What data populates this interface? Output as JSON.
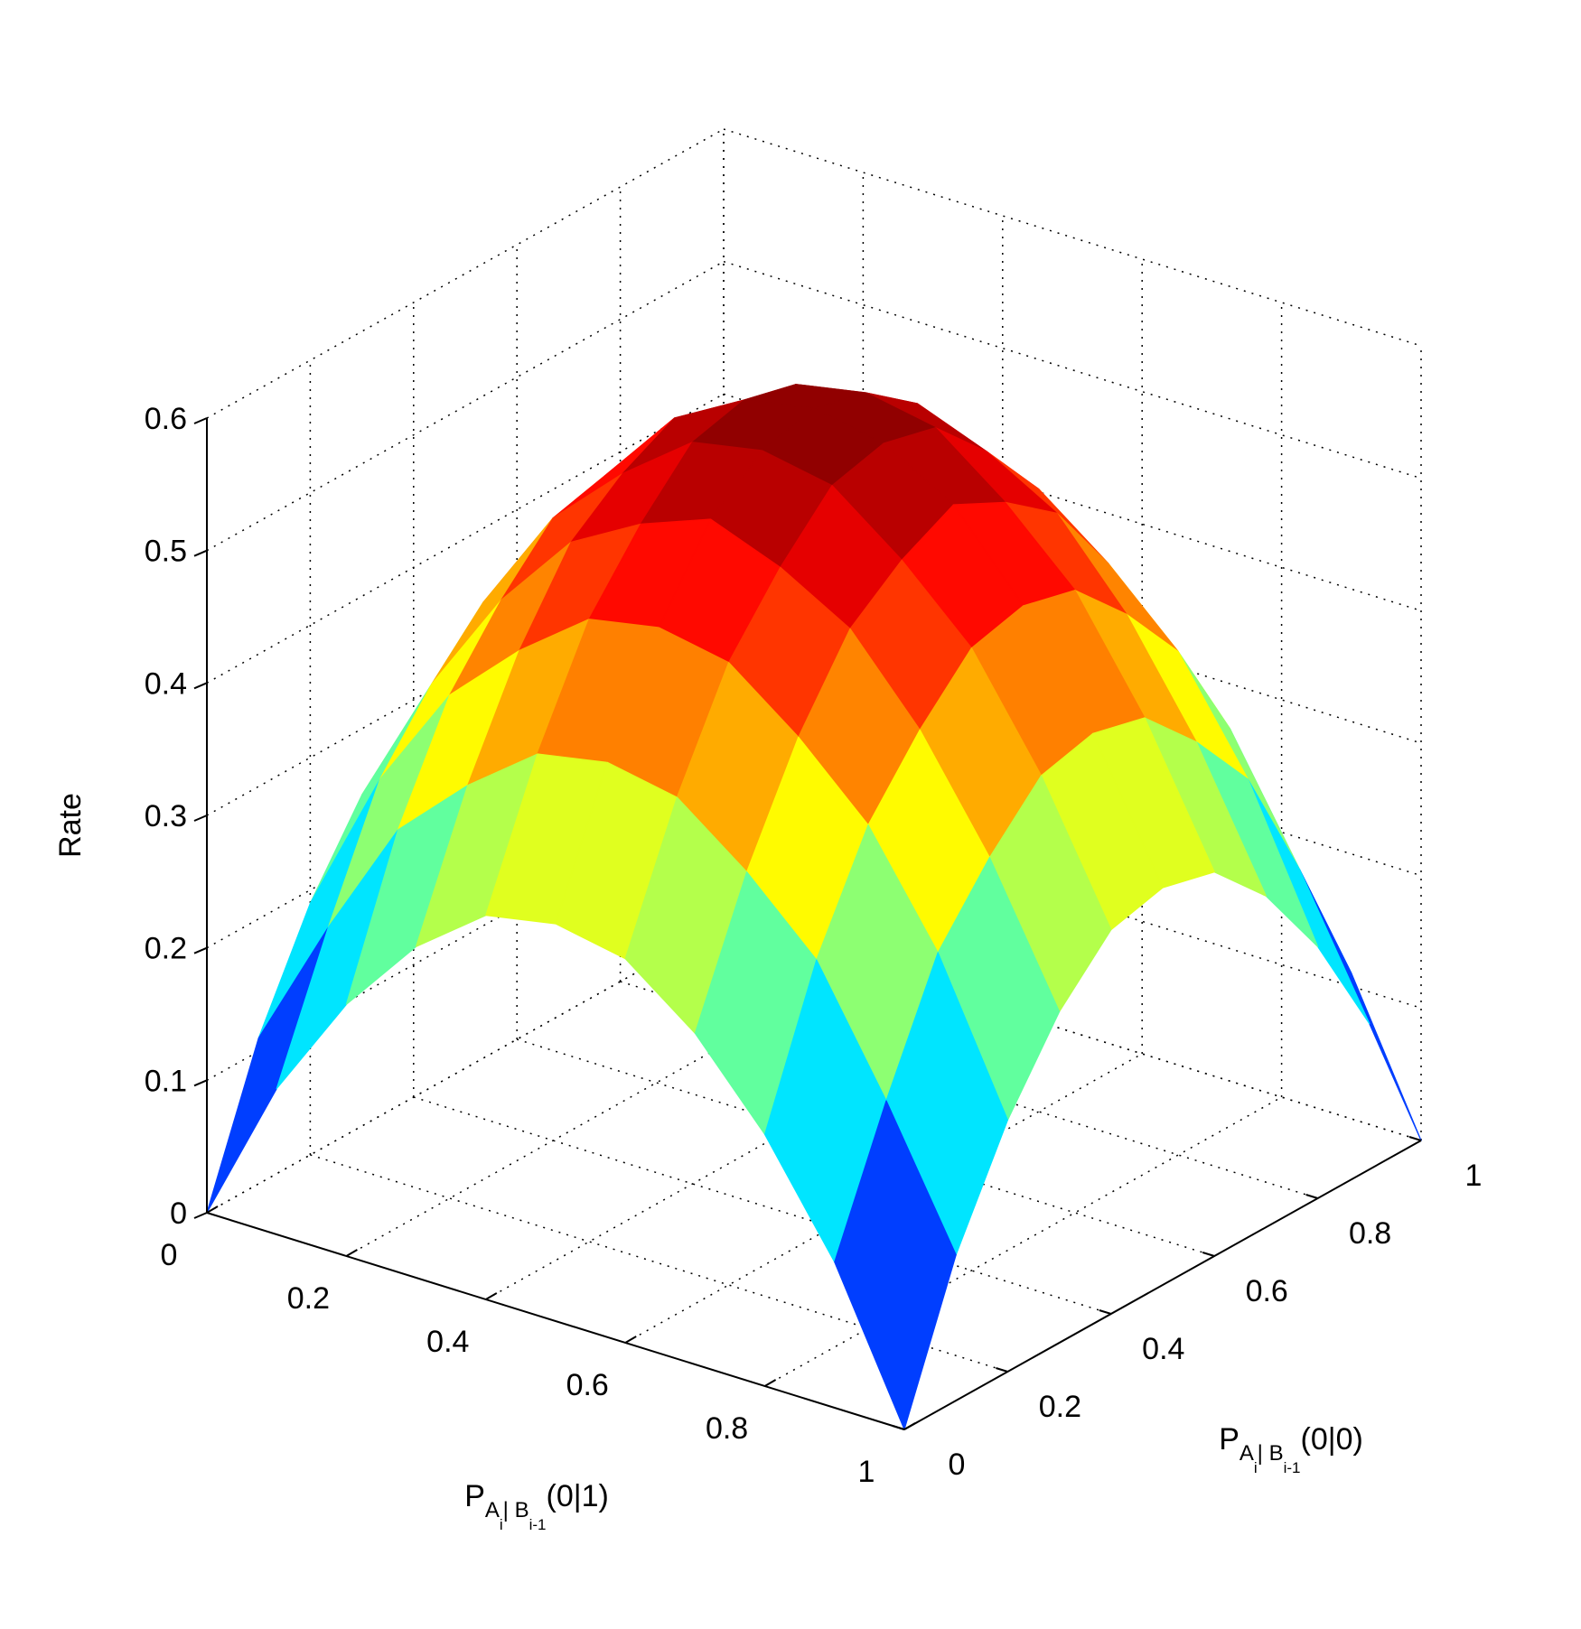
{
  "chart_data": {
    "type": "surface",
    "zlabel": "Rate",
    "xlabel": {
      "base": "P",
      "sub": "A",
      "sub_index": "i",
      "cond": "| B",
      "cond_index": "i-1",
      "arg": "(0|1)"
    },
    "ylabel": {
      "base": "P",
      "sub": "A",
      "sub_index": "i",
      "cond": "| B",
      "cond_index": "i-1",
      "arg": "(0|0)"
    },
    "x": [
      0,
      0.1,
      0.2,
      0.3,
      0.4,
      0.5,
      0.6,
      0.7,
      0.8,
      0.9,
      1
    ],
    "y": [
      0,
      0.1,
      0.2,
      0.3,
      0.4,
      0.5,
      0.6,
      0.7,
      0.8,
      0.9,
      1
    ],
    "z": [
      [
        0,
        0.11,
        0.19,
        0.25,
        0.29,
        0.3,
        0.29,
        0.25,
        0.19,
        0.11,
        0
      ],
      [
        0.11,
        0.21,
        0.3,
        0.35,
        0.39,
        0.4,
        0.39,
        0.35,
        0.3,
        0.21,
        0.11
      ],
      [
        0.19,
        0.3,
        0.38,
        0.43,
        0.47,
        0.48,
        0.47,
        0.43,
        0.38,
        0.3,
        0.19
      ],
      [
        0.25,
        0.35,
        0.43,
        0.49,
        0.52,
        0.54,
        0.52,
        0.49,
        0.43,
        0.35,
        0.25
      ],
      [
        0.29,
        0.39,
        0.47,
        0.52,
        0.56,
        0.57,
        0.56,
        0.52,
        0.47,
        0.39,
        0.29
      ],
      [
        0.3,
        0.4,
        0.48,
        0.54,
        0.57,
        0.58,
        0.57,
        0.54,
        0.48,
        0.4,
        0.3
      ],
      [
        0.29,
        0.39,
        0.47,
        0.52,
        0.56,
        0.57,
        0.56,
        0.52,
        0.47,
        0.39,
        0.29
      ],
      [
        0.25,
        0.35,
        0.43,
        0.49,
        0.52,
        0.54,
        0.52,
        0.49,
        0.43,
        0.35,
        0.25
      ],
      [
        0.19,
        0.3,
        0.38,
        0.43,
        0.47,
        0.48,
        0.47,
        0.43,
        0.38,
        0.3,
        0.19
      ],
      [
        0.11,
        0.21,
        0.3,
        0.35,
        0.39,
        0.4,
        0.39,
        0.35,
        0.3,
        0.21,
        0.11
      ],
      [
        0,
        0.11,
        0.19,
        0.25,
        0.29,
        0.3,
        0.29,
        0.25,
        0.19,
        0.11,
        0
      ]
    ],
    "colormap": "jet",
    "xlim": [
      0,
      1
    ],
    "ylim": [
      0,
      1
    ],
    "zlim": [
      0,
      0.6
    ],
    "xticks": [
      0,
      0.2,
      0.4,
      0.6,
      0.8,
      1
    ],
    "yticks": [
      0,
      0.2,
      0.4,
      0.6,
      0.8,
      1
    ],
    "zticks": [
      0,
      0.1,
      0.2,
      0.3,
      0.4,
      0.5,
      0.6
    ],
    "grid": true
  }
}
